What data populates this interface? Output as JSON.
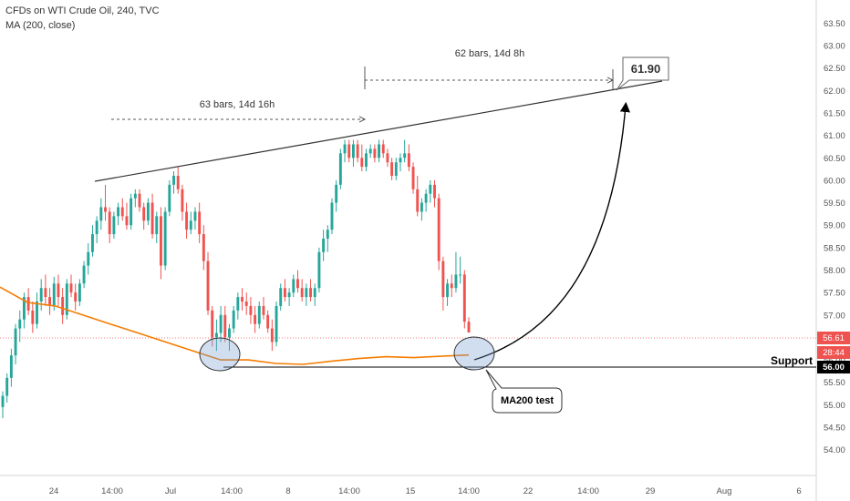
{
  "header": {
    "title": "CFDs on WTI Crude Oil, 240, TVC",
    "indicator": "MA (200, close)"
  },
  "colors": {
    "up": "#26a69a",
    "down": "#ef5350",
    "ma": "#f57c00",
    "price_tag": "#ef5350",
    "support_tag": "#000000",
    "trendline": "#333333"
  },
  "chart_data": {
    "type": "candlestick",
    "title": "CFDs on WTI Crude Oil, 240, TVC",
    "indicator": "MA (200, close)",
    "ylim": [
      53.75,
      63.65
    ],
    "y_ticks": [
      "54.00",
      "54.50",
      "55.00",
      "55.50",
      "56.00",
      "56.50",
      "57.00",
      "57.50",
      "58.00",
      "58.50",
      "59.00",
      "59.50",
      "60.00",
      "60.50",
      "61.00",
      "61.50",
      "62.00",
      "62.50",
      "63.00",
      "63.50"
    ],
    "x_ticks": [
      "24",
      "14:00",
      "Jul",
      "14:00",
      "8",
      "14:00",
      "15",
      "14:00",
      "22",
      "14:00",
      "29",
      "Aug",
      "6"
    ],
    "ohlc": [
      [
        54.95,
        55.3,
        54.7,
        55.2
      ],
      [
        55.2,
        55.7,
        55.05,
        55.6
      ],
      [
        55.6,
        56.25,
        55.4,
        56.1
      ],
      [
        56.1,
        56.8,
        55.9,
        56.7
      ],
      [
        56.7,
        57.1,
        56.4,
        56.9
      ],
      [
        56.9,
        57.5,
        56.7,
        57.4
      ],
      [
        57.4,
        57.6,
        57.0,
        57.1
      ],
      [
        57.1,
        57.3,
        56.6,
        56.8
      ],
      [
        56.8,
        57.5,
        56.7,
        57.3
      ],
      [
        57.3,
        57.8,
        57.1,
        57.6
      ],
      [
        57.6,
        57.9,
        57.2,
        57.4
      ],
      [
        57.4,
        57.6,
        57.0,
        57.2
      ],
      [
        57.2,
        57.85,
        57.1,
        57.7
      ],
      [
        57.7,
        57.9,
        57.2,
        57.4
      ],
      [
        57.4,
        57.6,
        56.8,
        57.0
      ],
      [
        57.0,
        57.8,
        56.9,
        57.7
      ],
      [
        57.7,
        57.9,
        57.4,
        57.5
      ],
      [
        57.5,
        57.7,
        57.1,
        57.3
      ],
      [
        57.3,
        57.8,
        57.2,
        57.7
      ],
      [
        57.7,
        58.2,
        57.6,
        58.1
      ],
      [
        58.1,
        58.6,
        57.9,
        58.4
      ],
      [
        58.4,
        59.0,
        58.3,
        58.8
      ],
      [
        58.8,
        59.2,
        58.6,
        59.1
      ],
      [
        59.1,
        59.6,
        58.9,
        59.4
      ],
      [
        59.4,
        59.9,
        59.1,
        59.3
      ],
      [
        59.3,
        59.4,
        58.6,
        58.8
      ],
      [
        58.8,
        59.3,
        58.7,
        59.2
      ],
      [
        59.2,
        59.5,
        59.0,
        59.4
      ],
      [
        59.4,
        59.6,
        59.1,
        59.2
      ],
      [
        59.2,
        59.5,
        58.9,
        59.0
      ],
      [
        59.0,
        59.7,
        58.9,
        59.6
      ],
      [
        59.6,
        59.8,
        59.4,
        59.7
      ],
      [
        59.7,
        59.8,
        59.3,
        59.4
      ],
      [
        59.4,
        59.5,
        58.9,
        59.1
      ],
      [
        59.1,
        59.6,
        59.0,
        59.5
      ],
      [
        59.5,
        59.7,
        58.7,
        58.8
      ],
      [
        58.8,
        59.3,
        58.6,
        59.2
      ],
      [
        59.2,
        59.4,
        57.8,
        58.1
      ],
      [
        58.1,
        59.4,
        58.0,
        59.3
      ],
      [
        59.3,
        60.0,
        59.2,
        59.9
      ],
      [
        59.9,
        60.2,
        59.7,
        60.1
      ],
      [
        60.1,
        60.3,
        59.7,
        59.8
      ],
      [
        59.8,
        59.9,
        59.1,
        59.3
      ],
      [
        59.3,
        59.5,
        58.7,
        58.9
      ],
      [
        58.9,
        59.3,
        58.8,
        59.1
      ],
      [
        59.1,
        59.4,
        58.9,
        59.3
      ],
      [
        59.3,
        59.5,
        58.6,
        58.8
      ],
      [
        58.8,
        59.0,
        58.0,
        58.2
      ],
      [
        58.2,
        58.4,
        57.0,
        57.1
      ],
      [
        57.1,
        57.2,
        56.3,
        56.5
      ],
      [
        56.5,
        56.9,
        56.2,
        56.6
      ],
      [
        56.6,
        57.2,
        56.4,
        57.0
      ],
      [
        57.0,
        57.2,
        56.4,
        56.5
      ],
      [
        56.5,
        56.8,
        56.2,
        56.7
      ],
      [
        56.7,
        57.2,
        56.6,
        57.1
      ],
      [
        57.1,
        57.5,
        56.9,
        57.4
      ],
      [
        57.4,
        57.6,
        57.1,
        57.3
      ],
      [
        57.3,
        57.5,
        57.0,
        57.2
      ],
      [
        57.2,
        57.4,
        56.8,
        57.0
      ],
      [
        57.0,
        57.2,
        56.6,
        56.8
      ],
      [
        56.8,
        57.3,
        56.7,
        57.2
      ],
      [
        57.2,
        57.4,
        56.9,
        57.0
      ],
      [
        57.0,
        57.1,
        56.6,
        56.7
      ],
      [
        56.7,
        56.9,
        56.2,
        56.4
      ],
      [
        56.4,
        57.3,
        56.3,
        57.2
      ],
      [
        57.2,
        57.7,
        57.1,
        57.6
      ],
      [
        57.6,
        57.8,
        57.3,
        57.4
      ],
      [
        57.4,
        57.6,
        57.2,
        57.5
      ],
      [
        57.5,
        57.9,
        57.4,
        57.8
      ],
      [
        57.8,
        58.0,
        57.5,
        57.6
      ],
      [
        57.6,
        57.8,
        57.3,
        57.4
      ],
      [
        57.4,
        57.7,
        57.2,
        57.6
      ],
      [
        57.6,
        57.8,
        57.3,
        57.4
      ],
      [
        57.4,
        57.7,
        57.2,
        57.6
      ],
      [
        57.6,
        58.5,
        57.5,
        58.4
      ],
      [
        58.4,
        58.9,
        58.2,
        58.7
      ],
      [
        58.7,
        59.0,
        58.4,
        58.9
      ],
      [
        58.9,
        59.6,
        58.8,
        59.5
      ],
      [
        59.5,
        60.0,
        59.3,
        59.9
      ],
      [
        59.9,
        60.7,
        59.8,
        60.6
      ],
      [
        60.6,
        60.9,
        60.4,
        60.8
      ],
      [
        60.8,
        60.9,
        60.4,
        60.5
      ],
      [
        60.5,
        60.9,
        60.3,
        60.8
      ],
      [
        60.8,
        60.9,
        60.4,
        60.5
      ],
      [
        60.5,
        60.8,
        60.2,
        60.3
      ],
      [
        60.3,
        60.7,
        60.2,
        60.6
      ],
      [
        60.6,
        60.8,
        60.5,
        60.7
      ],
      [
        60.7,
        60.8,
        60.4,
        60.5
      ],
      [
        60.5,
        60.9,
        60.4,
        60.8
      ],
      [
        60.8,
        60.9,
        60.5,
        60.6
      ],
      [
        60.6,
        60.7,
        60.3,
        60.4
      ],
      [
        60.4,
        60.5,
        60.0,
        60.1
      ],
      [
        60.1,
        60.5,
        60.0,
        60.4
      ],
      [
        60.4,
        60.6,
        60.2,
        60.5
      ],
      [
        60.5,
        60.9,
        60.4,
        60.6
      ],
      [
        60.6,
        60.8,
        60.2,
        60.3
      ],
      [
        60.3,
        60.4,
        59.7,
        59.8
      ],
      [
        59.8,
        60.1,
        59.2,
        59.3
      ],
      [
        59.3,
        59.6,
        59.1,
        59.5
      ],
      [
        59.5,
        59.8,
        59.3,
        59.7
      ],
      [
        59.7,
        60.0,
        59.5,
        59.9
      ],
      [
        59.9,
        60.0,
        59.4,
        59.6
      ],
      [
        59.6,
        59.7,
        58.0,
        58.2
      ],
      [
        58.2,
        58.3,
        57.1,
        57.4
      ],
      [
        57.4,
        57.8,
        57.2,
        57.7
      ],
      [
        57.7,
        57.9,
        57.4,
        57.6
      ],
      [
        57.6,
        58.4,
        57.5,
        57.9
      ],
      [
        57.9,
        58.3,
        57.7,
        57.9
      ],
      [
        57.9,
        58.0,
        56.7,
        56.85
      ],
      [
        56.85,
        56.95,
        56.61,
        56.61
      ]
    ],
    "ma200": [
      [
        57.62,
        57.28
      ],
      [
        57.2,
        57.0
      ],
      [
        56.8,
        56.6
      ],
      [
        56.4,
        56.2
      ],
      [
        56.0,
        56.0
      ],
      [
        55.92,
        55.9
      ],
      [
        55.97,
        56.03
      ],
      [
        56.07,
        56.05
      ],
      [
        56.08,
        56.11
      ]
    ],
    "current_price": 56.61,
    "support_level": 56.0,
    "resistance_line": [
      [
        59.98,
        62.08
      ]
    ],
    "measure_1_label": "63 bars, 14d 16h",
    "measure_2_label": "62 bars, 14d 8h",
    "target_label": "61.90",
    "target_price": 61.9,
    "support_label": "Support",
    "ma_test_label": "MA200 test",
    "price_tag": "56.61",
    "countdown_tag": "28:44",
    "support_tag": "56.00"
  }
}
